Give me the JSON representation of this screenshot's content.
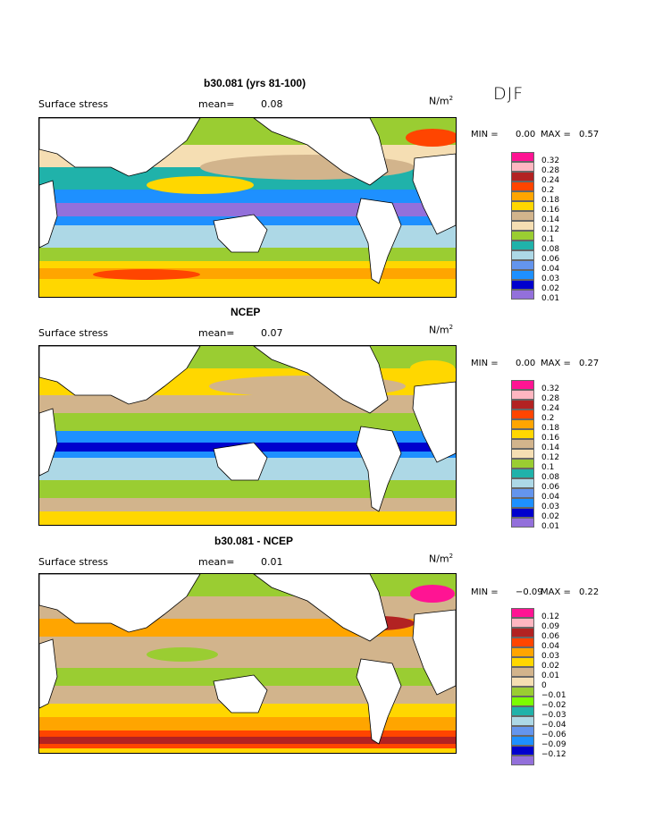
{
  "season": "DJF",
  "units": "N/m",
  "units_exp": "2",
  "panels": [
    {
      "title": "b30.081 (yrs 81-100)",
      "label": "Surface stress",
      "mean_label": "mean=",
      "mean_value": "0.08",
      "min_label": "MIN =",
      "min_value": "0.00",
      "max_label": "MAX =",
      "max_value": "0.57",
      "legend": {
        "labels": [
          "0.32",
          "0.28",
          "0.24",
          "0.2",
          "0.18",
          "0.16",
          "0.14",
          "0.12",
          "0.1",
          "0.08",
          "0.06",
          "0.04",
          "0.03",
          "0.02",
          "0.01"
        ],
        "colors": [
          "#ff1493",
          "#ffb6c1",
          "#b22222",
          "#ff4500",
          "#ffa500",
          "#ffd700",
          "#d2b48c",
          "#f5deb3",
          "#9acd32",
          "#20b2aa",
          "#add8e6",
          "#6495ed",
          "#1e90ff",
          "#0000cd",
          "#9370db"
        ]
      }
    },
    {
      "title": "NCEP",
      "label": "Surface stress",
      "mean_label": "mean=",
      "mean_value": "0.07",
      "min_label": "MIN =",
      "min_value": "0.00",
      "max_label": "MAX =",
      "max_value": "0.27",
      "legend": {
        "labels": [
          "0.32",
          "0.28",
          "0.24",
          "0.2",
          "0.18",
          "0.16",
          "0.14",
          "0.12",
          "0.1",
          "0.08",
          "0.06",
          "0.04",
          "0.03",
          "0.02",
          "0.01"
        ],
        "colors": [
          "#ff1493",
          "#ffb6c1",
          "#b22222",
          "#ff4500",
          "#ffa500",
          "#ffd700",
          "#d2b48c",
          "#f5deb3",
          "#9acd32",
          "#20b2aa",
          "#add8e6",
          "#6495ed",
          "#1e90ff",
          "#0000cd",
          "#9370db"
        ]
      }
    },
    {
      "title": "b30.081 - NCEP",
      "label": "Surface stress",
      "mean_label": "mean=",
      "mean_value": "0.01",
      "min_label": "MIN =",
      "min_value": "−0.09",
      "max_label": "MAX =",
      "max_value": "0.22",
      "legend": {
        "labels": [
          "0.12",
          "0.09",
          "0.06",
          "0.04",
          "0.03",
          "0.02",
          "0.01",
          "0",
          "−0.01",
          "−0.02",
          "−0.03",
          "−0.04",
          "−0.06",
          "−0.09",
          "−0.12"
        ],
        "colors": [
          "#ff1493",
          "#ffb6c1",
          "#b22222",
          "#ff4500",
          "#ffa500",
          "#ffd700",
          "#d2b48c",
          "#f5deb3",
          "#9acd32",
          "#7cfc00",
          "#20b2aa",
          "#add8e6",
          "#6495ed",
          "#1e90ff",
          "#0000cd",
          "#9370db"
        ]
      }
    }
  ]
}
